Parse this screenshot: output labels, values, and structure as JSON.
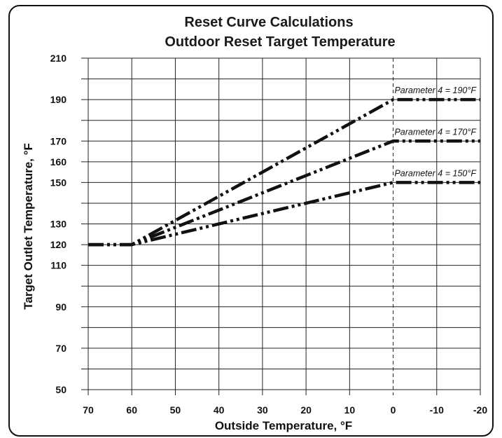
{
  "chart_data": {
    "type": "line",
    "title": "Reset Curve Calculations",
    "subtitle": "Outdoor Reset Target Temperature",
    "xlabel": "Outside Temperature, °F",
    "ylabel": "Target Outlet Temperature, °F",
    "xlim": [
      70,
      -20
    ],
    "ylim": [
      50,
      210
    ],
    "x_ticks": [
      70,
      60,
      50,
      40,
      30,
      20,
      10,
      0,
      -10,
      -20
    ],
    "y_ticks": [
      50,
      70,
      90,
      110,
      120,
      130,
      150,
      160,
      170,
      190,
      210
    ],
    "y_grid": [
      50,
      60,
      70,
      80,
      90,
      100,
      110,
      120,
      130,
      140,
      150,
      160,
      170,
      180,
      190,
      200,
      210
    ],
    "grid": true,
    "reference_line_x": 0,
    "series": [
      {
        "name": "Parameter 4 = 190°F",
        "x": [
          70,
          60,
          0,
          -20
        ],
        "y": [
          120,
          120,
          190,
          190
        ]
      },
      {
        "name": "Parameter 4 = 170°F",
        "x": [
          70,
          60,
          0,
          -20
        ],
        "y": [
          120,
          120,
          170,
          170
        ]
      },
      {
        "name": "Parameter 4 = 150°F",
        "x": [
          70,
          60,
          0,
          -20
        ],
        "y": [
          120,
          120,
          150,
          150
        ]
      }
    ]
  }
}
